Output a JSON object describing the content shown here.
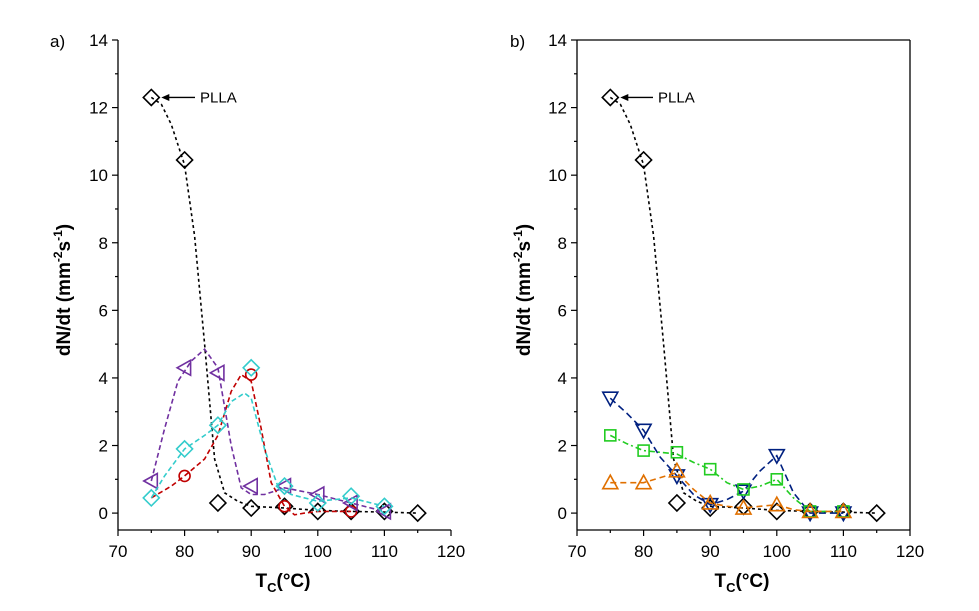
{
  "chart_data": [
    {
      "type": "scatter",
      "panel_label": "a)",
      "xlabel": "T",
      "xlabel_sub": "C",
      "xlabel_tail": "(°C)",
      "ylabel": "dN/dt (mm",
      "ylabel_sup1": "-2",
      "ylabel_mid": "s",
      "ylabel_sup2": "-1",
      "ylabel_tail": ")",
      "xlim": [
        70,
        120
      ],
      "ylim": [
        -0.5,
        14
      ],
      "xticks": [
        70,
        75,
        80,
        85,
        90,
        95,
        100,
        105,
        110,
        115,
        120
      ],
      "xtick_labels": [
        "70",
        "",
        "80",
        "",
        "90",
        "",
        "100",
        "",
        "110",
        "",
        "120"
      ],
      "yticks": [
        0,
        1,
        2,
        3,
        4,
        5,
        6,
        7,
        8,
        9,
        10,
        11,
        12,
        13,
        14
      ],
      "ytick_labels": [
        "0",
        "",
        "2",
        "",
        "4",
        "",
        "6",
        "",
        "8",
        "",
        "10",
        "",
        "12",
        "",
        "14"
      ],
      "annotation": {
        "text": "PLLA",
        "x": 75,
        "y": 12.3
      },
      "series": [
        {
          "name": "PLLA",
          "marker": "diamond",
          "color": "#000000",
          "dash": "3,3",
          "x": [
            75,
            80,
            85,
            90,
            95,
            100,
            105,
            110,
            115
          ],
          "y": [
            12.3,
            10.45,
            0.3,
            0.15,
            0.2,
            0.05,
            0.05,
            0.05,
            0.0
          ],
          "curve": [
            [
              75,
              12.3
            ],
            [
              76.5,
              12.1
            ],
            [
              78,
              11.5
            ],
            [
              80,
              10.3
            ],
            [
              81.5,
              8.2
            ],
            [
              83,
              5.0
            ],
            [
              84.5,
              1.6
            ],
            [
              86,
              0.6
            ],
            [
              88,
              0.35
            ],
            [
              90,
              0.2
            ],
            [
              95,
              0.15
            ],
            [
              100,
              0.08
            ],
            [
              105,
              0.05
            ],
            [
              110,
              0.03
            ],
            [
              115,
              0.0
            ]
          ]
        },
        {
          "name": "red-circle",
          "marker": "circle",
          "color": "#c00000",
          "dash": "5,3",
          "x": [
            80,
            90,
            95,
            105
          ],
          "y": [
            1.1,
            4.1,
            0.2,
            0.05
          ],
          "curve": [
            [
              75,
              0.45
            ],
            [
              78,
              0.8
            ],
            [
              80,
              1.1
            ],
            [
              83,
              1.6
            ],
            [
              85,
              2.3
            ],
            [
              87,
              3.6
            ],
            [
              88.5,
              4.1
            ],
            [
              90,
              3.9
            ],
            [
              91.5,
              2.5
            ],
            [
              93,
              0.9
            ],
            [
              95,
              0.2
            ],
            [
              96.5,
              -0.05
            ],
            [
              98,
              0.0
            ],
            [
              100,
              0.05
            ],
            [
              105,
              0.05
            ]
          ]
        },
        {
          "name": "purple-left-triangle",
          "marker": "triangle-left",
          "color": "#7030a0",
          "dash": "5,3",
          "x": [
            75,
            80,
            85,
            90,
            95,
            100,
            105,
            110
          ],
          "y": [
            0.95,
            4.3,
            4.15,
            0.8,
            0.8,
            0.55,
            0.3,
            0.05
          ],
          "curve": [
            [
              75,
              0.95
            ],
            [
              77,
              2.5
            ],
            [
              79,
              3.9
            ],
            [
              81,
              4.5
            ],
            [
              83,
              4.85
            ],
            [
              85,
              4.3
            ],
            [
              87,
              2.0
            ],
            [
              88.5,
              0.75
            ],
            [
              90,
              0.55
            ],
            [
              92,
              0.55
            ],
            [
              95,
              0.75
            ],
            [
              100,
              0.55
            ],
            [
              105,
              0.3
            ],
            [
              110,
              0.05
            ]
          ]
        },
        {
          "name": "cyan-diamond",
          "marker": "diamond",
          "color": "#33cccc",
          "dash": "5,3",
          "x": [
            75,
            80,
            85,
            90,
            95,
            100,
            105,
            110
          ],
          "y": [
            0.45,
            1.9,
            2.6,
            4.3,
            0.8,
            0.3,
            0.5,
            0.2
          ],
          "curve": [
            [
              75,
              0.45
            ],
            [
              77,
              1.1
            ],
            [
              80,
              1.9
            ],
            [
              83,
              2.3
            ],
            [
              85,
              2.6
            ],
            [
              87,
              3.3
            ],
            [
              89,
              3.55
            ],
            [
              90,
              3.4
            ],
            [
              92,
              1.9
            ],
            [
              94,
              0.8
            ],
            [
              96,
              0.55
            ],
            [
              100,
              0.35
            ],
            [
              105,
              0.45
            ],
            [
              110,
              0.2
            ]
          ]
        }
      ]
    },
    {
      "type": "scatter",
      "panel_label": "b)",
      "xlabel": "T",
      "xlabel_sub": "C",
      "xlabel_tail": "(°C)",
      "ylabel": "dN/dt (mm",
      "ylabel_sup1": "-2",
      "ylabel_mid": "s",
      "ylabel_sup2": "-1",
      "ylabel_tail": ")",
      "xlim": [
        70,
        120
      ],
      "ylim": [
        -0.5,
        14
      ],
      "xticks": [
        70,
        75,
        80,
        85,
        90,
        95,
        100,
        105,
        110,
        115,
        120
      ],
      "xtick_labels": [
        "70",
        "",
        "80",
        "",
        "90",
        "",
        "100",
        "",
        "110",
        "",
        "120"
      ],
      "yticks": [
        0,
        1,
        2,
        3,
        4,
        5,
        6,
        7,
        8,
        9,
        10,
        11,
        12,
        13,
        14
      ],
      "ytick_labels": [
        "0",
        "",
        "2",
        "",
        "4",
        "",
        "6",
        "",
        "8",
        "",
        "10",
        "",
        "12",
        "",
        "14"
      ],
      "annotation": {
        "text": "PLLA",
        "x": 75,
        "y": 12.3
      },
      "series": [
        {
          "name": "PLLA",
          "marker": "diamond",
          "color": "#000000",
          "dash": "3,3",
          "x": [
            75,
            80,
            85,
            90,
            95,
            100,
            105,
            110,
            115
          ],
          "y": [
            12.3,
            10.45,
            0.3,
            0.15,
            0.2,
            0.05,
            0.05,
            0.05,
            0.0
          ],
          "curve": [
            [
              75,
              12.3
            ],
            [
              76.5,
              12.1
            ],
            [
              78,
              11.5
            ],
            [
              80,
              10.3
            ],
            [
              81.5,
              8.2
            ],
            [
              83,
              5.0
            ],
            [
              84.5,
              1.6
            ],
            [
              86,
              0.6
            ],
            [
              88,
              0.35
            ],
            [
              90,
              0.2
            ],
            [
              95,
              0.15
            ],
            [
              100,
              0.08
            ],
            [
              105,
              0.05
            ],
            [
              110,
              0.03
            ],
            [
              115,
              0.0
            ]
          ]
        },
        {
          "name": "blue-down-triangle",
          "marker": "triangle-down",
          "color": "#002080",
          "dash": "7,4",
          "x": [
            75,
            80,
            85,
            90,
            95,
            100,
            105,
            110
          ],
          "y": [
            3.4,
            2.45,
            1.1,
            0.25,
            0.65,
            1.7,
            0.0,
            0.0
          ],
          "curve": [
            [
              75,
              3.4
            ],
            [
              77.5,
              2.95
            ],
            [
              80,
              2.45
            ],
            [
              82.5,
              1.65
            ],
            [
              85,
              1.1
            ],
            [
              87.5,
              0.55
            ],
            [
              90,
              0.25
            ],
            [
              92.5,
              0.4
            ],
            [
              95,
              0.65
            ],
            [
              97.5,
              1.25
            ],
            [
              100,
              1.7
            ],
            [
              102.5,
              0.6
            ],
            [
              105,
              0.0
            ],
            [
              110,
              0.0
            ]
          ]
        },
        {
          "name": "green-square",
          "marker": "square",
          "color": "#22cc22",
          "dash": "6,3,2,3",
          "x": [
            75,
            80,
            85,
            90,
            95,
            100,
            105,
            110
          ],
          "y": [
            2.3,
            1.85,
            1.8,
            1.3,
            0.7,
            1.0,
            0.05,
            0.05
          ],
          "curve": [
            [
              75,
              2.3
            ],
            [
              77.5,
              2.05
            ],
            [
              80,
              1.85
            ],
            [
              82.5,
              1.8
            ],
            [
              85,
              1.75
            ],
            [
              87.5,
              1.5
            ],
            [
              90,
              1.3
            ],
            [
              92.5,
              0.9
            ],
            [
              95,
              0.7
            ],
            [
              97.5,
              0.8
            ],
            [
              100,
              1.0
            ],
            [
              102.5,
              0.45
            ],
            [
              105,
              0.05
            ],
            [
              110,
              0.05
            ]
          ]
        },
        {
          "name": "orange-triangle",
          "marker": "triangle-up",
          "color": "#e07000",
          "dash": "6,4",
          "x": [
            75,
            80,
            85,
            90,
            95,
            100,
            105,
            110
          ],
          "y": [
            0.9,
            0.9,
            1.25,
            0.3,
            0.15,
            0.25,
            0.05,
            0.05
          ],
          "curve": [
            [
              75,
              0.9
            ],
            [
              77.5,
              0.9
            ],
            [
              80,
              0.9
            ],
            [
              82.5,
              1.05
            ],
            [
              85,
              1.2
            ],
            [
              87.5,
              0.7
            ],
            [
              90,
              0.3
            ],
            [
              92.5,
              0.2
            ],
            [
              95,
              0.15
            ],
            [
              97.5,
              0.2
            ],
            [
              100,
              0.25
            ],
            [
              102.5,
              0.1
            ],
            [
              105,
              0.05
            ],
            [
              110,
              0.05
            ]
          ]
        }
      ]
    }
  ]
}
